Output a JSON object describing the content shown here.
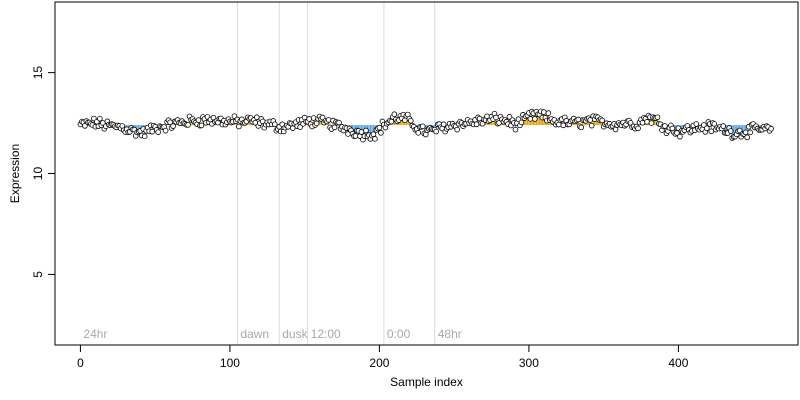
{
  "chart_data": {
    "type": "scatter",
    "title": "",
    "xlabel": "Sample index",
    "ylabel": "Expression",
    "xlim": [
      -17,
      480
    ],
    "ylim": [
      1.5,
      18.5
    ],
    "x_ticks": [
      0,
      100,
      200,
      300,
      400
    ],
    "y_ticks": [
      5,
      10,
      15
    ],
    "section_markers": [
      {
        "label": "24hr",
        "x": 0
      },
      {
        "label": "dawn",
        "x": 105
      },
      {
        "label": "dusk",
        "x": 133
      },
      {
        "label": "12:00",
        "x": 152
      },
      {
        "label": "0:00",
        "x": 203
      },
      {
        "label": "48hr",
        "x": 237
      }
    ],
    "baseline": 12.4,
    "above_color": "#e69f00",
    "below_color": "#56a0e0",
    "point_fill": "#ffffff",
    "point_stroke": "#000000",
    "grid": false,
    "legend": "none",
    "curve": [
      [
        0,
        12.4
      ],
      [
        10,
        12.5
      ],
      [
        20,
        12.35
      ],
      [
        28,
        12.3
      ],
      [
        35,
        12.1
      ],
      [
        42,
        12.0
      ],
      [
        48,
        12.2
      ],
      [
        55,
        12.35
      ],
      [
        65,
        12.5
      ],
      [
        75,
        12.6
      ],
      [
        85,
        12.65
      ],
      [
        95,
        12.6
      ],
      [
        105,
        12.55
      ],
      [
        115,
        12.6
      ],
      [
        125,
        12.45
      ],
      [
        135,
        12.3
      ],
      [
        145,
        12.45
      ],
      [
        155,
        12.6
      ],
      [
        165,
        12.5
      ],
      [
        175,
        12.3
      ],
      [
        183,
        12.1
      ],
      [
        190,
        11.95
      ],
      [
        197,
        12.0
      ],
      [
        203,
        12.4
      ],
      [
        210,
        12.75
      ],
      [
        218,
        12.7
      ],
      [
        225,
        12.3
      ],
      [
        232,
        12.05
      ],
      [
        240,
        12.25
      ],
      [
        248,
        12.4
      ],
      [
        258,
        12.5
      ],
      [
        268,
        12.6
      ],
      [
        278,
        12.7
      ],
      [
        286,
        12.6
      ],
      [
        292,
        12.4
      ],
      [
        300,
        12.8
      ],
      [
        306,
        12.9
      ],
      [
        312,
        12.75
      ],
      [
        320,
        12.55
      ],
      [
        330,
        12.5
      ],
      [
        340,
        12.6
      ],
      [
        350,
        12.55
      ],
      [
        358,
        12.45
      ],
      [
        365,
        12.5
      ],
      [
        372,
        12.45
      ],
      [
        380,
        12.8
      ],
      [
        386,
        12.6
      ],
      [
        392,
        12.3
      ],
      [
        400,
        12.1
      ],
      [
        408,
        12.2
      ],
      [
        415,
        12.3
      ],
      [
        422,
        12.3
      ],
      [
        430,
        12.2
      ],
      [
        438,
        12.0
      ],
      [
        446,
        12.1
      ],
      [
        454,
        12.2
      ],
      [
        462,
        12.15
      ]
    ],
    "n_points": 463
  }
}
